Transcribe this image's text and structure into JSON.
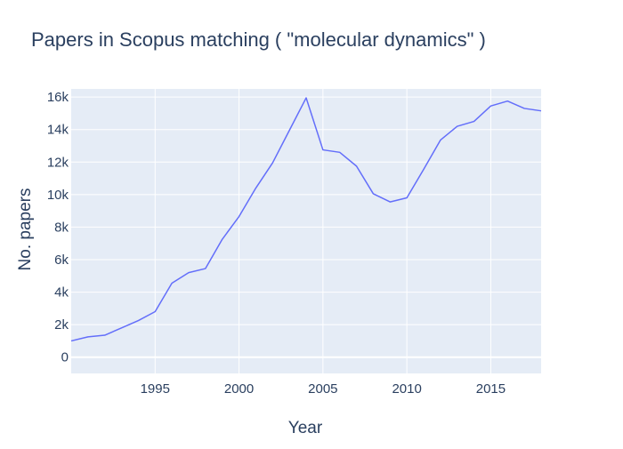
{
  "chart_data": {
    "type": "line",
    "title": "Papers in Scopus matching ( \"molecular dynamics\" )",
    "xlabel": "Year",
    "ylabel": "No. papers",
    "xlim": [
      1990,
      2018
    ],
    "ylim": [
      -1000,
      16500
    ],
    "grid": true,
    "legend": "none",
    "x_ticks": [
      {
        "value": 1995,
        "label": "1995"
      },
      {
        "value": 2000,
        "label": "2000"
      },
      {
        "value": 2005,
        "label": "2005"
      },
      {
        "value": 2010,
        "label": "2010"
      },
      {
        "value": 2015,
        "label": "2015"
      }
    ],
    "y_ticks": [
      {
        "value": 0,
        "label": "0"
      },
      {
        "value": 2000,
        "label": "2k"
      },
      {
        "value": 4000,
        "label": "4k"
      },
      {
        "value": 6000,
        "label": "6k"
      },
      {
        "value": 8000,
        "label": "8k"
      },
      {
        "value": 10000,
        "label": "10k"
      },
      {
        "value": 12000,
        "label": "12k"
      },
      {
        "value": 14000,
        "label": "14k"
      },
      {
        "value": 16000,
        "label": "16k"
      }
    ],
    "series": [
      {
        "color": "#636efa",
        "x": [
          1990,
          1991,
          1992,
          1993,
          1994,
          1995,
          1996,
          1997,
          1998,
          1999,
          2000,
          2001,
          2002,
          2003,
          2004,
          2005,
          2006,
          2007,
          2008,
          2009,
          2010,
          2011,
          2012,
          2013,
          2014,
          2015,
          2016,
          2017,
          2018
        ],
        "y": [
          1000,
          1250,
          1350,
          1800,
          2250,
          2800,
          4550,
          5200,
          5450,
          7250,
          8650,
          10400,
          11950,
          13950,
          15950,
          12750,
          12600,
          11750,
          10050,
          9550,
          9800,
          11550,
          13350,
          14200,
          14500,
          15450,
          15750,
          15300,
          15150
        ]
      }
    ]
  },
  "colors": {
    "plot_background": "#e5ecf6",
    "grid": "#ffffff",
    "text": "#2a3f5f"
  }
}
